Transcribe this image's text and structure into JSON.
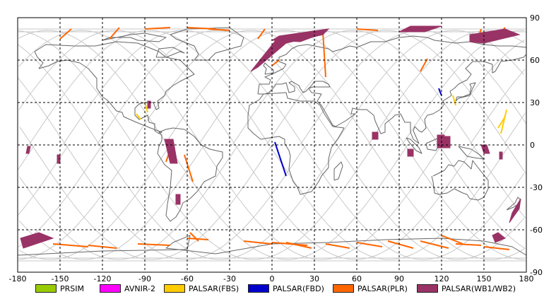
{
  "map": {
    "x_ticks": [
      "-180",
      "-150",
      "-120",
      "-90",
      "-60",
      "-30",
      "0",
      "30",
      "60",
      "90",
      "120",
      "150",
      "180"
    ],
    "y_ticks": [
      "90",
      "60",
      "30",
      "0",
      "-30",
      "-60",
      "-90"
    ],
    "lon_range": [
      -180,
      180
    ],
    "lat_range": [
      -90,
      90
    ],
    "grid": "dashed",
    "colors": {
      "coast": "#666666",
      "orbit": "#c8c8c8",
      "PRSIM": "#99cc00",
      "AVNIR-2": "#ff00ff",
      "PALSAR(FBS)": "#ffcc00",
      "PALSAR(FBD)": "#0000cc",
      "PALSAR(PLR)": "#ff6600",
      "PALSAR(WB1/WB2)": "#993366"
    }
  },
  "legend": [
    {
      "label": "PRSIM",
      "color": "#99cc00"
    },
    {
      "label": "AVNIR-2",
      "color": "#ff00ff"
    },
    {
      "label": "PALSAR(FBS)",
      "color": "#ffcc00"
    },
    {
      "label": "PALSAR(FBD)",
      "color": "#0000cc"
    },
    {
      "label": "PALSAR(PLR)",
      "color": "#ff6600"
    },
    {
      "label": "PALSAR(WB1/WB2)",
      "color": "#993366"
    }
  ],
  "observations": {
    "wb": [
      [
        [
          -178,
          -66
        ],
        [
          -165,
          -62
        ],
        [
          -155,
          -66
        ],
        [
          -176,
          -73
        ]
      ],
      [
        [
          -173,
          -1
        ],
        [
          -171,
          -1
        ],
        [
          -172,
          -6
        ],
        [
          -174,
          -6
        ]
      ],
      [
        [
          -152,
          -7
        ],
        [
          -150,
          -7
        ],
        [
          -150,
          -13
        ],
        [
          -152,
          -13
        ]
      ],
      [
        [
          -72,
          -13
        ],
        [
          -67,
          -13
        ],
        [
          -70,
          4
        ],
        [
          -76,
          4
        ]
      ],
      [
        [
          -88,
          31
        ],
        [
          -86,
          31
        ],
        [
          -86,
          26
        ],
        [
          -88,
          26
        ]
      ],
      [
        [
          -15,
          52
        ],
        [
          5,
          77
        ],
        [
          40,
          82
        ],
        [
          36,
          78
        ],
        [
          10,
          72
        ],
        [
          -10,
          55
        ]
      ],
      [
        [
          0,
          74
        ],
        [
          5,
          77
        ],
        [
          40,
          82
        ],
        [
          36,
          79
        ],
        [
          20,
          73
        ]
      ],
      [
        [
          71,
          9
        ],
        [
          75,
          9
        ],
        [
          75,
          4
        ],
        [
          71,
          4
        ]
      ],
      [
        [
          96,
          -3
        ],
        [
          100,
          -3
        ],
        [
          100,
          -8
        ],
        [
          96,
          -8
        ]
      ],
      [
        [
          117,
          7
        ],
        [
          122,
          7
        ],
        [
          122,
          -2
        ],
        [
          117,
          -2
        ]
      ],
      [
        [
          120,
          6
        ],
        [
          126,
          6
        ],
        [
          126,
          -2
        ],
        [
          120,
          -2
        ]
      ],
      [
        [
          98,
          84
        ],
        [
          120,
          84
        ],
        [
          108,
          80
        ],
        [
          90,
          80
        ]
      ],
      [
        [
          140,
          78
        ],
        [
          165,
          82
        ],
        [
          175,
          78
        ],
        [
          150,
          72
        ],
        [
          140,
          73
        ]
      ],
      [
        [
          148,
          0
        ],
        [
          152,
          0
        ],
        [
          154,
          -6
        ],
        [
          150,
          -6
        ]
      ],
      [
        [
          161,
          -5
        ],
        [
          163,
          -5
        ],
        [
          163,
          -10
        ],
        [
          161,
          -10
        ]
      ],
      [
        [
          168,
          -55
        ],
        [
          175,
          -45
        ],
        [
          176,
          -38
        ],
        [
          170,
          -48
        ]
      ],
      [
        [
          156,
          -64
        ],
        [
          160,
          -62
        ],
        [
          165,
          -66
        ],
        [
          158,
          -69
        ]
      ],
      [
        [
          -68,
          -35
        ],
        [
          -65,
          -35
        ],
        [
          -65,
          -42
        ],
        [
          -68,
          -42
        ]
      ]
    ],
    "plr": [
      [
        [
          -150,
          75
        ],
        [
          -142,
          82
        ]
      ],
      [
        [
          -115,
          75
        ],
        [
          -108,
          83
        ]
      ],
      [
        [
          -90,
          82
        ],
        [
          -72,
          83
        ]
      ],
      [
        [
          -60,
          83
        ],
        [
          -40,
          82
        ]
      ],
      [
        [
          -45,
          82
        ],
        [
          -30,
          81
        ]
      ],
      [
        [
          -10,
          75
        ],
        [
          -5,
          82
        ]
      ],
      [
        [
          -75,
          -12
        ],
        [
          -70,
          3
        ]
      ],
      [
        [
          -62,
          -7
        ],
        [
          -56,
          -26
        ]
      ],
      [
        [
          -58,
          -62
        ],
        [
          -52,
          -68
        ]
      ],
      [
        [
          0,
          56
        ],
        [
          5,
          60
        ]
      ],
      [
        [
          38,
          48
        ],
        [
          36,
          80
        ]
      ],
      [
        [
          60,
          82
        ],
        [
          75,
          81
        ]
      ],
      [
        [
          105,
          52
        ],
        [
          110,
          61
        ]
      ],
      [
        [
          145,
          72
        ],
        [
          148,
          82
        ]
      ],
      [
        [
          160,
          78
        ],
        [
          165,
          83
        ]
      ],
      [
        [
          -155,
          -70
        ],
        [
          -130,
          -72
        ]
      ],
      [
        [
          -130,
          -71
        ],
        [
          -110,
          -73
        ]
      ],
      [
        [
          -95,
          -70
        ],
        [
          -72,
          -71
        ]
      ],
      [
        [
          -60,
          -66
        ],
        [
          -45,
          -67
        ]
      ],
      [
        [
          -20,
          -68
        ],
        [
          0,
          -70
        ]
      ],
      [
        [
          0,
          -69
        ],
        [
          25,
          -71
        ]
      ],
      [
        [
          10,
          -69
        ],
        [
          28,
          -73
        ]
      ],
      [
        [
          38,
          -70
        ],
        [
          55,
          -73
        ]
      ],
      [
        [
          60,
          -69
        ],
        [
          78,
          -72
        ]
      ],
      [
        [
          82,
          -68
        ],
        [
          100,
          -73
        ]
      ],
      [
        [
          105,
          -68
        ],
        [
          125,
          -73
        ]
      ],
      [
        [
          130,
          -70
        ],
        [
          148,
          -71
        ]
      ],
      [
        [
          150,
          -72
        ],
        [
          168,
          -74
        ]
      ],
      [
        [
          120,
          -64
        ],
        [
          135,
          -70
        ]
      ]
    ],
    "fbs": [
      [
        [
          -96,
          22
        ],
        [
          -93,
          18
        ]
      ],
      [
        [
          -90,
          30
        ],
        [
          -88,
          23
        ]
      ],
      [
        [
          128,
          35
        ],
        [
          130,
          28
        ]
      ],
      [
        [
          166,
          25
        ],
        [
          162,
          8
        ]
      ],
      [
        [
          160,
          12
        ],
        [
          165,
          20
        ]
      ]
    ],
    "fbd": [
      [
        [
          2,
          2
        ],
        [
          10,
          -22
        ]
      ],
      [
        [
          118,
          40
        ],
        [
          120,
          35
        ]
      ]
    ]
  }
}
